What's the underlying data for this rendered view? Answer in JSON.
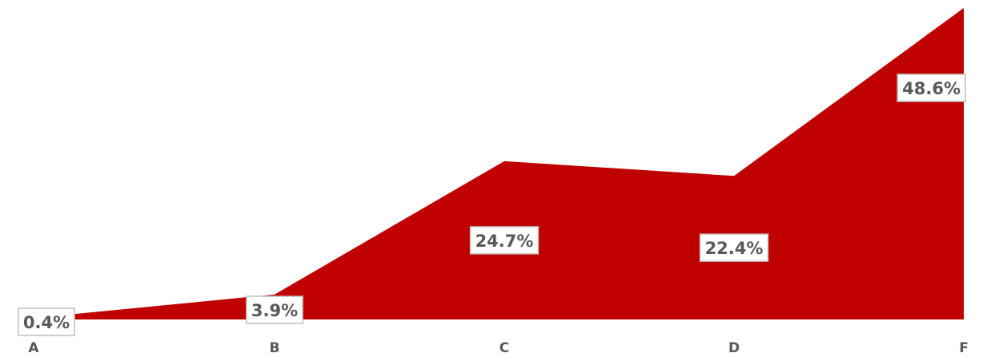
{
  "chart_data": {
    "type": "area",
    "categories": [
      "A",
      "B",
      "C",
      "D",
      "F"
    ],
    "values": [
      0.4,
      3.9,
      24.7,
      22.4,
      48.6
    ],
    "data_labels": [
      "0.4%",
      "3.9%",
      "24.7%",
      "22.4%",
      "48.6%"
    ],
    "title": "",
    "xlabel": "",
    "ylabel": "",
    "ylim": [
      0,
      48.6
    ],
    "grid": false,
    "legend": "none",
    "colors": {
      "area": "#c00000",
      "label_text": "#595959",
      "label_border": "#bfbfbf",
      "label_fill": "#ffffff"
    }
  }
}
